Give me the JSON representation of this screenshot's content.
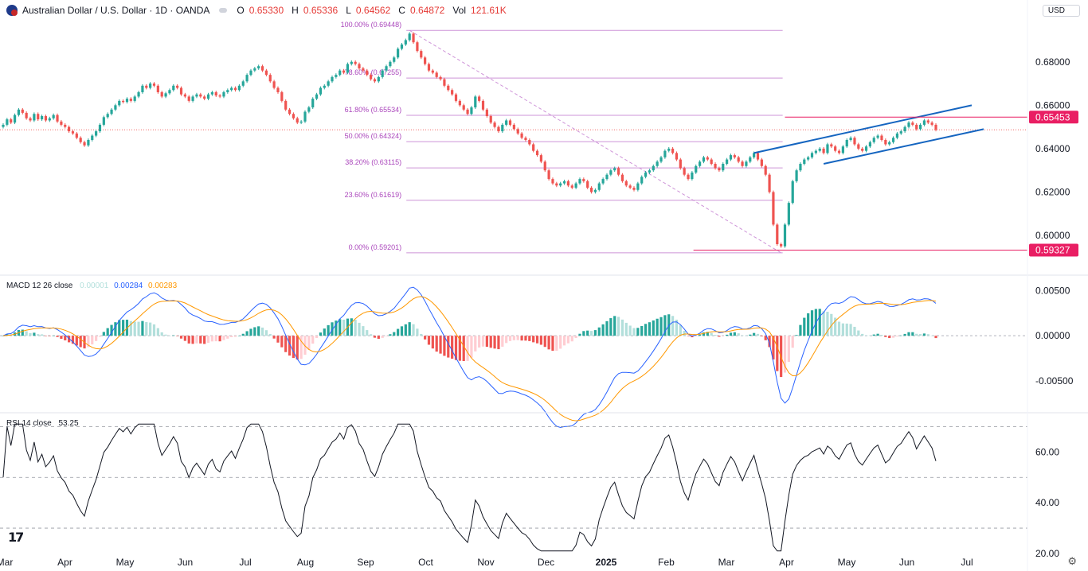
{
  "header": {
    "symbol": "Australian Dollar / U.S. Dollar · 1D · OANDA",
    "o_label": "O",
    "o_value": "0.65330",
    "h_label": "H",
    "h_value": "0.65336",
    "l_label": "L",
    "l_value": "0.64562",
    "c_label": "C",
    "c_value": "0.64872",
    "vol_label": "Vol",
    "vol_value": "121.61K",
    "currency": "USD"
  },
  "colors": {
    "up": "#26a69a",
    "down": "#ef5350",
    "fib": "#ce93d8",
    "fib_text": "#ab47bc",
    "channel": "#1565c0",
    "macd": "#2962ff",
    "signal": "#ff9800",
    "rsi": "#131722",
    "price_tag": "#e91e63"
  },
  "chart_data": [
    {
      "type": "candlestick",
      "pane": "price",
      "x_axis": {
        "ticks": [
          "Mar",
          "Apr",
          "May",
          "Jun",
          "Jul",
          "Aug",
          "Sep",
          "Oct",
          "Nov",
          "Dec",
          "2025",
          "Feb",
          "Mar",
          "Apr",
          "May",
          "Jun",
          "Jul"
        ]
      },
      "y_axis": {
        "ticks": [
          "0.68000",
          "0.66000",
          "0.64000",
          "0.62000",
          "0.60000"
        ],
        "range": [
          0.5905,
          0.6975
        ]
      },
      "series": [
        {
          "name": "",
          "values": [
            0.651,
            0.6535,
            0.652,
            0.6555,
            0.658,
            0.6565,
            0.654,
            0.653,
            0.656,
            0.6535,
            0.655,
            0.653,
            0.654,
            0.6555,
            0.6525,
            0.651,
            0.65,
            0.648,
            0.647,
            0.645,
            0.643,
            0.6415,
            0.644,
            0.646,
            0.648,
            0.651,
            0.6545,
            0.656,
            0.658,
            0.66,
            0.662,
            0.6615,
            0.663,
            0.662,
            0.664,
            0.666,
            0.669,
            0.668,
            0.67,
            0.669,
            0.666,
            0.664,
            0.6655,
            0.667,
            0.669,
            0.668,
            0.665,
            0.664,
            0.662,
            0.664,
            0.665,
            0.664,
            0.663,
            0.665,
            0.666,
            0.6645,
            0.664,
            0.666,
            0.667,
            0.668,
            0.667,
            0.669,
            0.671,
            0.674,
            0.676,
            0.677,
            0.678,
            0.676,
            0.674,
            0.671,
            0.668,
            0.666,
            0.662,
            0.658,
            0.656,
            0.654,
            0.652,
            0.6525,
            0.657,
            0.659,
            0.663,
            0.665,
            0.668,
            0.669,
            0.671,
            0.673,
            0.674,
            0.676,
            0.675,
            0.679,
            0.68,
            0.679,
            0.677,
            0.676,
            0.674,
            0.672,
            0.671,
            0.673,
            0.676,
            0.678,
            0.68,
            0.682,
            0.686,
            0.688,
            0.69,
            0.693,
            0.689,
            0.685,
            0.682,
            0.679,
            0.676,
            0.675,
            0.673,
            0.672,
            0.669,
            0.667,
            0.665,
            0.662,
            0.66,
            0.658,
            0.656,
            0.659,
            0.664,
            0.662,
            0.658,
            0.655,
            0.652,
            0.65,
            0.648,
            0.651,
            0.653,
            0.651,
            0.649,
            0.647,
            0.645,
            0.644,
            0.642,
            0.639,
            0.637,
            0.634,
            0.63,
            0.626,
            0.624,
            0.623,
            0.624,
            0.625,
            0.623,
            0.622,
            0.624,
            0.626,
            0.625,
            0.622,
            0.62,
            0.621,
            0.624,
            0.626,
            0.628,
            0.63,
            0.631,
            0.628,
            0.625,
            0.623,
            0.622,
            0.621,
            0.624,
            0.627,
            0.629,
            0.63,
            0.632,
            0.634,
            0.636,
            0.639,
            0.64,
            0.638,
            0.635,
            0.631,
            0.628,
            0.626,
            0.629,
            0.632,
            0.634,
            0.636,
            0.635,
            0.633,
            0.631,
            0.63,
            0.633,
            0.635,
            0.637,
            0.636,
            0.634,
            0.632,
            0.634,
            0.636,
            0.638,
            0.635,
            0.632,
            0.628,
            0.62,
            0.605,
            0.596,
            0.595,
            0.605,
            0.615,
            0.625,
            0.63,
            0.633,
            0.635,
            0.636,
            0.638,
            0.639,
            0.64,
            0.638,
            0.642,
            0.641,
            0.639,
            0.638,
            0.641,
            0.644,
            0.645,
            0.642,
            0.64,
            0.639,
            0.641,
            0.643,
            0.645,
            0.646,
            0.644,
            0.642,
            0.643,
            0.645,
            0.647,
            0.648,
            0.65,
            0.652,
            0.651,
            0.649,
            0.651,
            0.653,
            0.652,
            0.651,
            0.6487
          ]
        }
      ],
      "fibonacci": [
        {
          "label": "100.00% (0.69448)",
          "value": 0.69448
        },
        {
          "label": "78.60% (0.67255)",
          "value": 0.67255
        },
        {
          "label": "61.80% (0.65534)",
          "value": 0.65534
        },
        {
          "label": "50.00% (0.64324)",
          "value": 0.64324
        },
        {
          "label": "38.20% (0.63115)",
          "value": 0.63115
        },
        {
          "label": "23.60% (0.61619)",
          "value": 0.61619
        },
        {
          "label": "0.00% (0.59201)",
          "value": 0.59201
        }
      ],
      "price_tags": [
        "0.65453",
        "0.59327"
      ]
    },
    {
      "type": "line",
      "pane": "macd",
      "title": "MACD 12 26 close",
      "values_shown": {
        "histogram": "0.00001",
        "macd": "0.00284",
        "signal": "0.00283"
      },
      "y_axis": {
        "ticks": [
          "0.00500",
          "0.00000",
          "-0.00500"
        ],
        "range": [
          -0.0082,
          0.0062
        ]
      }
    },
    {
      "type": "line",
      "pane": "rsi",
      "title": "RSI 14 close",
      "value_shown": "53.25",
      "y_axis": {
        "ticks": [
          "60.00",
          "40.00",
          "20.00"
        ],
        "range": [
          20,
          72
        ]
      },
      "bands": [
        70,
        50,
        30
      ]
    }
  ]
}
